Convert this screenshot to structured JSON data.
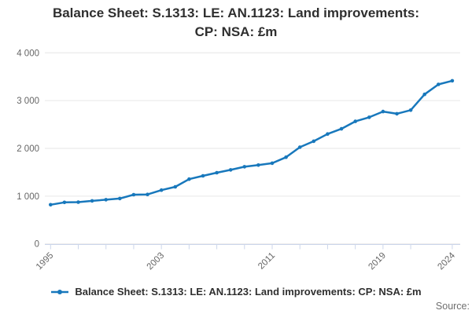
{
  "title": {
    "full": "Balance Sheet: S.1313: LE: AN.1123: Land improvements: CP: NSA: £m",
    "line1": "Balance Sheet: S.1313: LE: AN.1123: Land improvements:",
    "line2": "CP: NSA: £m"
  },
  "legend": {
    "label": "Balance Sheet: S.1313: LE: AN.1123: Land improvements: CP: NSA: £m"
  },
  "source_label": "Source:",
  "colors": {
    "line": "#1878bc",
    "grid": "#e6e6e6",
    "axis": "#ccd6eb",
    "tick_label": "#666666",
    "title_text": "#2f2f2f"
  },
  "chart_data": {
    "type": "line",
    "title": "Balance Sheet: S.1313: LE: AN.1123: Land improvements: CP: NSA: £m",
    "xlabel": "",
    "ylabel": "",
    "xlim": [
      1995,
      2024
    ],
    "ylim": [
      0,
      4000
    ],
    "grid": true,
    "legend_position": "bottom",
    "x": [
      1995,
      1996,
      1997,
      1998,
      1999,
      2000,
      2001,
      2002,
      2003,
      2004,
      2005,
      2006,
      2007,
      2008,
      2009,
      2010,
      2011,
      2012,
      2013,
      2014,
      2015,
      2016,
      2017,
      2018,
      2019,
      2020,
      2021,
      2022,
      2023,
      2024
    ],
    "series": [
      {
        "name": "Balance Sheet: S.1313: LE: AN.1123: Land improvements: CP: NSA: £m",
        "values": [
          820,
          870,
          875,
          900,
          925,
          950,
          1030,
          1035,
          1125,
          1195,
          1355,
          1425,
          1490,
          1550,
          1615,
          1650,
          1690,
          1815,
          2025,
          2150,
          2300,
          2410,
          2565,
          2650,
          2770,
          2725,
          2800,
          3130,
          3340,
          3415
        ]
      }
    ],
    "y_ticks": [
      {
        "value": 0,
        "label": "0"
      },
      {
        "value": 1000,
        "label": "1 000"
      },
      {
        "value": 2000,
        "label": "2 000"
      },
      {
        "value": 3000,
        "label": "3 000"
      },
      {
        "value": 4000,
        "label": "4 000"
      }
    ],
    "x_tick_years": [
      1995,
      1997,
      1999,
      2001,
      2003,
      2005,
      2007,
      2009,
      2011,
      2013,
      2015,
      2017,
      2019,
      2021,
      2024
    ],
    "x_axis_labels": [
      {
        "year": 1995,
        "label": "1995"
      },
      {
        "year": 2003,
        "label": "2003"
      },
      {
        "year": 2011,
        "label": "2011"
      },
      {
        "year": 2019,
        "label": "2019"
      },
      {
        "year": 2024,
        "label": "2024"
      }
    ]
  }
}
